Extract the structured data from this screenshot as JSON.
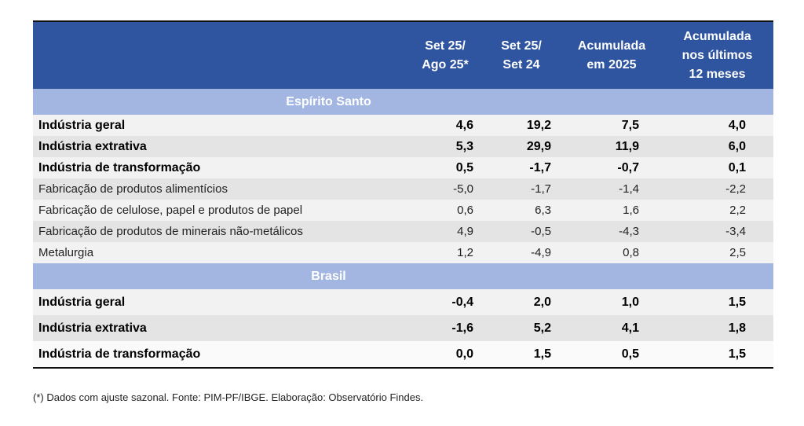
{
  "headers": [
    "",
    "Set 25/\nAgo 25*",
    "Set 25/\nSet 24",
    "Acumulada\nem 2025",
    "Acumulada\nnos últimos\n12 meses"
  ],
  "sections": [
    {
      "title": "Espírito Santo",
      "rows": [
        {
          "label": "Indústria geral",
          "bold": true,
          "values": [
            "4,6",
            "19,2",
            "7,5",
            "4,0"
          ]
        },
        {
          "label": "Indústria extrativa",
          "bold": true,
          "values": [
            "5,3",
            "29,9",
            "11,9",
            "6,0"
          ]
        },
        {
          "label": "Indústria de transformação",
          "bold": true,
          "values": [
            "0,5",
            "-1,7",
            "-0,7",
            "0,1"
          ]
        },
        {
          "label": "Fabricação de produtos alimentícios",
          "bold": false,
          "values": [
            "-5,0",
            "-1,7",
            "-1,4",
            "-2,2"
          ]
        },
        {
          "label": "Fabricação de celulose, papel e produtos de papel",
          "bold": false,
          "values": [
            "0,6",
            "6,3",
            "1,6",
            "2,2"
          ]
        },
        {
          "label": "Fabricação de produtos de minerais não-metálicos",
          "bold": false,
          "values": [
            "4,9",
            "-0,5",
            "-4,3",
            "-3,4"
          ]
        },
        {
          "label": "Metalurgia",
          "bold": false,
          "values": [
            "1,2",
            "-4,9",
            "0,8",
            "2,5"
          ]
        }
      ]
    },
    {
      "title": "Brasil",
      "rows": [
        {
          "label": "Indústria geral",
          "bold": true,
          "values": [
            "-0,4",
            "2,0",
            "1,0",
            "1,5"
          ]
        },
        {
          "label": "Indústria extrativa",
          "bold": true,
          "values": [
            "-1,6",
            "5,2",
            "4,1",
            "1,8"
          ]
        },
        {
          "label": "Indústria de transformação",
          "bold": true,
          "values": [
            "0,0",
            "1,5",
            "0,5",
            "1,5"
          ]
        }
      ]
    }
  ],
  "footnote": "(*) Dados com ajuste sazonal. Fonte: PIM-PF/IBGE. Elaboração: Observatório Findes.",
  "colors": {
    "header": "#2f55a0",
    "band": "#a3b6e2"
  }
}
